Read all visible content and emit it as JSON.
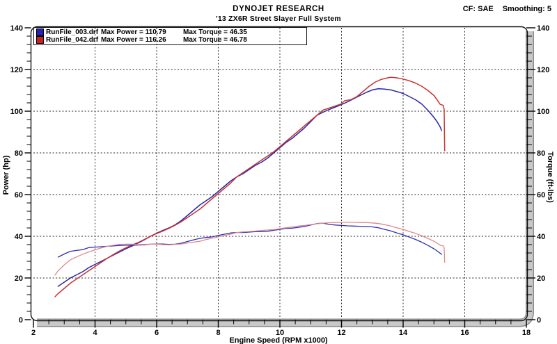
{
  "header": {
    "title": "DYNOJET RESEARCH",
    "subtitle": "'13 ZX6R Street Slayer Full System",
    "cf": "CF: SAE",
    "smoothing": "Smoothing: 5"
  },
  "legend": {
    "runs": [
      {
        "file": "RunFile_003.drf",
        "max_power": "Max Power = 110.79",
        "max_torque": "Max Torque = 46.35",
        "color": "#2222bb"
      },
      {
        "file": "RunFile_042.drf",
        "max_power": "Max Power = 116.26",
        "max_torque": "Max Torque = 46.78",
        "color": "#cc2020"
      }
    ]
  },
  "chart_data": {
    "type": "line",
    "title": "DYNOJET RESEARCH",
    "subtitle": "'13 ZX6R Street Slayer Full System",
    "xlabel": "Engine Speed (RPM x1000)",
    "ylabel_left": "Power (hp)",
    "ylabel_right": "Torque (ft-lbs)",
    "xlim": [
      2,
      18
    ],
    "ylim": [
      0,
      140
    ],
    "x_major_ticks": [
      2,
      4,
      6,
      8,
      10,
      12,
      14,
      16,
      18
    ],
    "x_minor_step": 0.5,
    "y_major_ticks": [
      0,
      20,
      40,
      60,
      80,
      100,
      120,
      140
    ],
    "y_minor_step": 4,
    "grid": "dashed",
    "max_values": {
      "run1_max_power": 110.79,
      "run1_max_torque": 46.35,
      "run2_max_power": 116.26,
      "run2_max_torque": 46.78
    },
    "series": [
      {
        "id": "run1-power-curve",
        "name": "RunFile_003.drf Power (hp)",
        "axis": "left",
        "color": "#2626ae",
        "width": 1.5,
        "points": [
          [
            2.8,
            16
          ],
          [
            3.0,
            18
          ],
          [
            3.2,
            20
          ],
          [
            3.4,
            21.5
          ],
          [
            3.6,
            23
          ],
          [
            3.8,
            25
          ],
          [
            4.0,
            26.5
          ],
          [
            4.2,
            28
          ],
          [
            4.4,
            29.5
          ],
          [
            4.6,
            31
          ],
          [
            4.8,
            32.5
          ],
          [
            5.0,
            34
          ],
          [
            5.2,
            35.3
          ],
          [
            5.4,
            36.8
          ],
          [
            5.6,
            38.3
          ],
          [
            5.8,
            40
          ],
          [
            6.0,
            41.5
          ],
          [
            6.2,
            42.8
          ],
          [
            6.4,
            44
          ],
          [
            6.6,
            45.5
          ],
          [
            6.8,
            47.5
          ],
          [
            7.0,
            50
          ],
          [
            7.2,
            52.5
          ],
          [
            7.4,
            55
          ],
          [
            7.6,
            57
          ],
          [
            7.8,
            59
          ],
          [
            8.0,
            61.5
          ],
          [
            8.2,
            64
          ],
          [
            8.4,
            66.5
          ],
          [
            8.6,
            68.5
          ],
          [
            8.8,
            70
          ],
          [
            9.0,
            72
          ],
          [
            9.2,
            74
          ],
          [
            9.4,
            75.5
          ],
          [
            9.6,
            77.5
          ],
          [
            9.8,
            80
          ],
          [
            10.0,
            82.5
          ],
          [
            10.2,
            85
          ],
          [
            10.4,
            87
          ],
          [
            10.6,
            89.5
          ],
          [
            10.8,
            92
          ],
          [
            11.0,
            95
          ],
          [
            11.2,
            98
          ],
          [
            11.4,
            99.5
          ],
          [
            11.6,
            100.8
          ],
          [
            11.8,
            102
          ],
          [
            12.0,
            103.2
          ],
          [
            12.2,
            104.5
          ],
          [
            12.4,
            106
          ],
          [
            12.6,
            107.5
          ],
          [
            12.8,
            109
          ],
          [
            13.0,
            110.2
          ],
          [
            13.2,
            110.8
          ],
          [
            13.4,
            110.6
          ],
          [
            13.6,
            110.2
          ],
          [
            13.8,
            109.4
          ],
          [
            14.0,
            108.5
          ],
          [
            14.2,
            107
          ],
          [
            14.4,
            105.5
          ],
          [
            14.6,
            103.5
          ],
          [
            14.8,
            100.5
          ],
          [
            15.0,
            97
          ],
          [
            15.1,
            95
          ],
          [
            15.2,
            92.5
          ],
          [
            15.25,
            90.7
          ]
        ]
      },
      {
        "id": "run2-power-curve",
        "name": "RunFile_042.drf Power (hp)",
        "axis": "left",
        "color": "#c83232",
        "width": 1.5,
        "points": [
          [
            2.7,
            11
          ],
          [
            2.8,
            12.5
          ],
          [
            3.0,
            15
          ],
          [
            3.2,
            17.5
          ],
          [
            3.4,
            19.5
          ],
          [
            3.6,
            21.5
          ],
          [
            3.8,
            23.5
          ],
          [
            4.0,
            25.5
          ],
          [
            4.2,
            27.5
          ],
          [
            4.4,
            29.5
          ],
          [
            4.6,
            31.3
          ],
          [
            4.8,
            33
          ],
          [
            5.0,
            34.5
          ],
          [
            5.2,
            35.8
          ],
          [
            5.4,
            37
          ],
          [
            5.6,
            38.5
          ],
          [
            5.8,
            40
          ],
          [
            6.0,
            41.3
          ],
          [
            6.2,
            42.5
          ],
          [
            6.4,
            43.8
          ],
          [
            6.6,
            45.3
          ],
          [
            6.8,
            47
          ],
          [
            7.0,
            49
          ],
          [
            7.2,
            51
          ],
          [
            7.4,
            53
          ],
          [
            7.6,
            55.5
          ],
          [
            7.8,
            58
          ],
          [
            8.0,
            60.5
          ],
          [
            8.2,
            63
          ],
          [
            8.4,
            65.5
          ],
          [
            8.6,
            68.5
          ],
          [
            8.8,
            70.5
          ],
          [
            9.0,
            72.5
          ],
          [
            9.2,
            74.5
          ],
          [
            9.4,
            76.5
          ],
          [
            9.6,
            78.5
          ],
          [
            9.8,
            80.5
          ],
          [
            10.0,
            83
          ],
          [
            10.2,
            85.5
          ],
          [
            10.4,
            88
          ],
          [
            10.6,
            90.5
          ],
          [
            10.8,
            93
          ],
          [
            11.0,
            95.5
          ],
          [
            11.2,
            98
          ],
          [
            11.4,
            100.5
          ],
          [
            11.6,
            101.5
          ],
          [
            11.8,
            102.5
          ],
          [
            12.0,
            103.5
          ],
          [
            12.1,
            105
          ],
          [
            12.3,
            105.5
          ],
          [
            12.5,
            107
          ],
          [
            12.7,
            109.5
          ],
          [
            12.9,
            112
          ],
          [
            13.1,
            114
          ],
          [
            13.3,
            115.3
          ],
          [
            13.5,
            116
          ],
          [
            13.6,
            116.3
          ],
          [
            13.8,
            116
          ],
          [
            14.0,
            115.4
          ],
          [
            14.2,
            114.6
          ],
          [
            14.4,
            113.5
          ],
          [
            14.6,
            112
          ],
          [
            14.8,
            110
          ],
          [
            15.0,
            107.5
          ],
          [
            15.1,
            105.5
          ],
          [
            15.2,
            103.3
          ],
          [
            15.3,
            102.8
          ],
          [
            15.33,
            101
          ],
          [
            15.35,
            81
          ]
        ]
      },
      {
        "id": "run1-torque-curve",
        "name": "RunFile_003.drf Torque (ft-lbs)",
        "axis": "right",
        "color": "#2e2eb8",
        "width": 1.3,
        "points": [
          [
            2.8,
            30
          ],
          [
            3.0,
            31.5
          ],
          [
            3.2,
            32.8
          ],
          [
            3.4,
            33.2
          ],
          [
            3.6,
            33.6
          ],
          [
            3.8,
            34.6
          ],
          [
            4.0,
            34.8
          ],
          [
            4.2,
            35
          ],
          [
            4.4,
            35.2
          ],
          [
            4.6,
            35.4
          ],
          [
            4.8,
            35.6
          ],
          [
            5.0,
            35.7
          ],
          [
            5.2,
            35.7
          ],
          [
            5.4,
            35.8
          ],
          [
            5.6,
            35.9
          ],
          [
            5.8,
            36.2
          ],
          [
            6.0,
            36.3
          ],
          [
            6.2,
            36.3
          ],
          [
            6.4,
            36.1
          ],
          [
            6.6,
            36.2
          ],
          [
            6.8,
            36.7
          ],
          [
            7.0,
            37.5
          ],
          [
            7.2,
            38.3
          ],
          [
            7.4,
            39
          ],
          [
            7.6,
            39.4
          ],
          [
            7.8,
            39.7
          ],
          [
            8.0,
            40.4
          ],
          [
            8.2,
            41
          ],
          [
            8.4,
            41.6
          ],
          [
            8.6,
            41.8
          ],
          [
            8.8,
            41.8
          ],
          [
            9.0,
            42
          ],
          [
            9.2,
            42.2
          ],
          [
            9.4,
            42.2
          ],
          [
            9.6,
            42.4
          ],
          [
            9.8,
            42.9
          ],
          [
            10.0,
            43.3
          ],
          [
            10.2,
            43.8
          ],
          [
            10.4,
            43.9
          ],
          [
            10.6,
            44.3
          ],
          [
            10.8,
            44.7
          ],
          [
            11.0,
            45.4
          ],
          [
            11.2,
            46.1
          ],
          [
            11.4,
            46.3
          ],
          [
            11.6,
            45.7
          ],
          [
            11.8,
            45.4
          ],
          [
            12.0,
            45.2
          ],
          [
            12.2,
            45
          ],
          [
            12.4,
            44.9
          ],
          [
            12.6,
            44.8
          ],
          [
            12.8,
            44.7
          ],
          [
            13.0,
            44.5
          ],
          [
            13.2,
            44.1
          ],
          [
            13.4,
            43.3
          ],
          [
            13.6,
            42.6
          ],
          [
            13.8,
            41.6
          ],
          [
            14.0,
            40.7
          ],
          [
            14.2,
            39.6
          ],
          [
            14.4,
            38.5
          ],
          [
            14.6,
            37.2
          ],
          [
            14.8,
            35.7
          ],
          [
            15.0,
            34
          ],
          [
            15.1,
            33
          ],
          [
            15.2,
            31.9
          ],
          [
            15.25,
            31.3
          ]
        ]
      },
      {
        "id": "run2-torque-curve",
        "name": "RunFile_042.drf Torque (ft-lbs)",
        "axis": "right",
        "color": "#e08888",
        "width": 1.3,
        "points": [
          [
            2.7,
            21.4
          ],
          [
            2.8,
            23.4
          ],
          [
            3.0,
            26.3
          ],
          [
            3.2,
            28.7
          ],
          [
            3.4,
            30.1
          ],
          [
            3.6,
            31.4
          ],
          [
            3.8,
            32.5
          ],
          [
            4.0,
            33.5
          ],
          [
            4.2,
            34.4
          ],
          [
            4.4,
            35.2
          ],
          [
            4.6,
            35.7
          ],
          [
            4.8,
            36.1
          ],
          [
            5.0,
            36.2
          ],
          [
            5.2,
            36.2
          ],
          [
            5.4,
            36
          ],
          [
            5.6,
            36.1
          ],
          [
            5.8,
            36.2
          ],
          [
            6.0,
            36.2
          ],
          [
            6.2,
            36
          ],
          [
            6.4,
            35.9
          ],
          [
            6.6,
            36.1
          ],
          [
            6.8,
            36.3
          ],
          [
            7.0,
            36.8
          ],
          [
            7.2,
            37.2
          ],
          [
            7.4,
            37.6
          ],
          [
            7.6,
            38.4
          ],
          [
            7.8,
            39.1
          ],
          [
            8.0,
            39.7
          ],
          [
            8.2,
            40.4
          ],
          [
            8.4,
            41
          ],
          [
            8.6,
            41.8
          ],
          [
            8.8,
            42.1
          ],
          [
            9.0,
            42.3
          ],
          [
            9.2,
            42.5
          ],
          [
            9.4,
            42.8
          ],
          [
            9.6,
            43
          ],
          [
            9.8,
            43.2
          ],
          [
            10.0,
            43.6
          ],
          [
            10.2,
            44.1
          ],
          [
            10.4,
            44.5
          ],
          [
            10.6,
            44.9
          ],
          [
            10.8,
            45.2
          ],
          [
            11.0,
            45.6
          ],
          [
            11.2,
            46
          ],
          [
            11.4,
            46.3
          ],
          [
            11.6,
            46.5
          ],
          [
            11.8,
            46.6
          ],
          [
            12.0,
            46.7
          ],
          [
            12.2,
            46.8
          ],
          [
            12.4,
            46.7
          ],
          [
            12.6,
            46.6
          ],
          [
            12.8,
            46.6
          ],
          [
            13.0,
            46.4
          ],
          [
            13.2,
            46.1
          ],
          [
            13.4,
            45.6
          ],
          [
            13.6,
            44.9
          ],
          [
            13.8,
            44.1
          ],
          [
            14.0,
            43.3
          ],
          [
            14.2,
            42.3
          ],
          [
            14.4,
            41.4
          ],
          [
            14.6,
            40.3
          ],
          [
            14.8,
            39
          ],
          [
            15.0,
            37.6
          ],
          [
            15.1,
            36.7
          ],
          [
            15.2,
            35.7
          ],
          [
            15.3,
            35.4
          ],
          [
            15.33,
            34.6
          ],
          [
            15.35,
            27.5
          ]
        ]
      }
    ]
  }
}
